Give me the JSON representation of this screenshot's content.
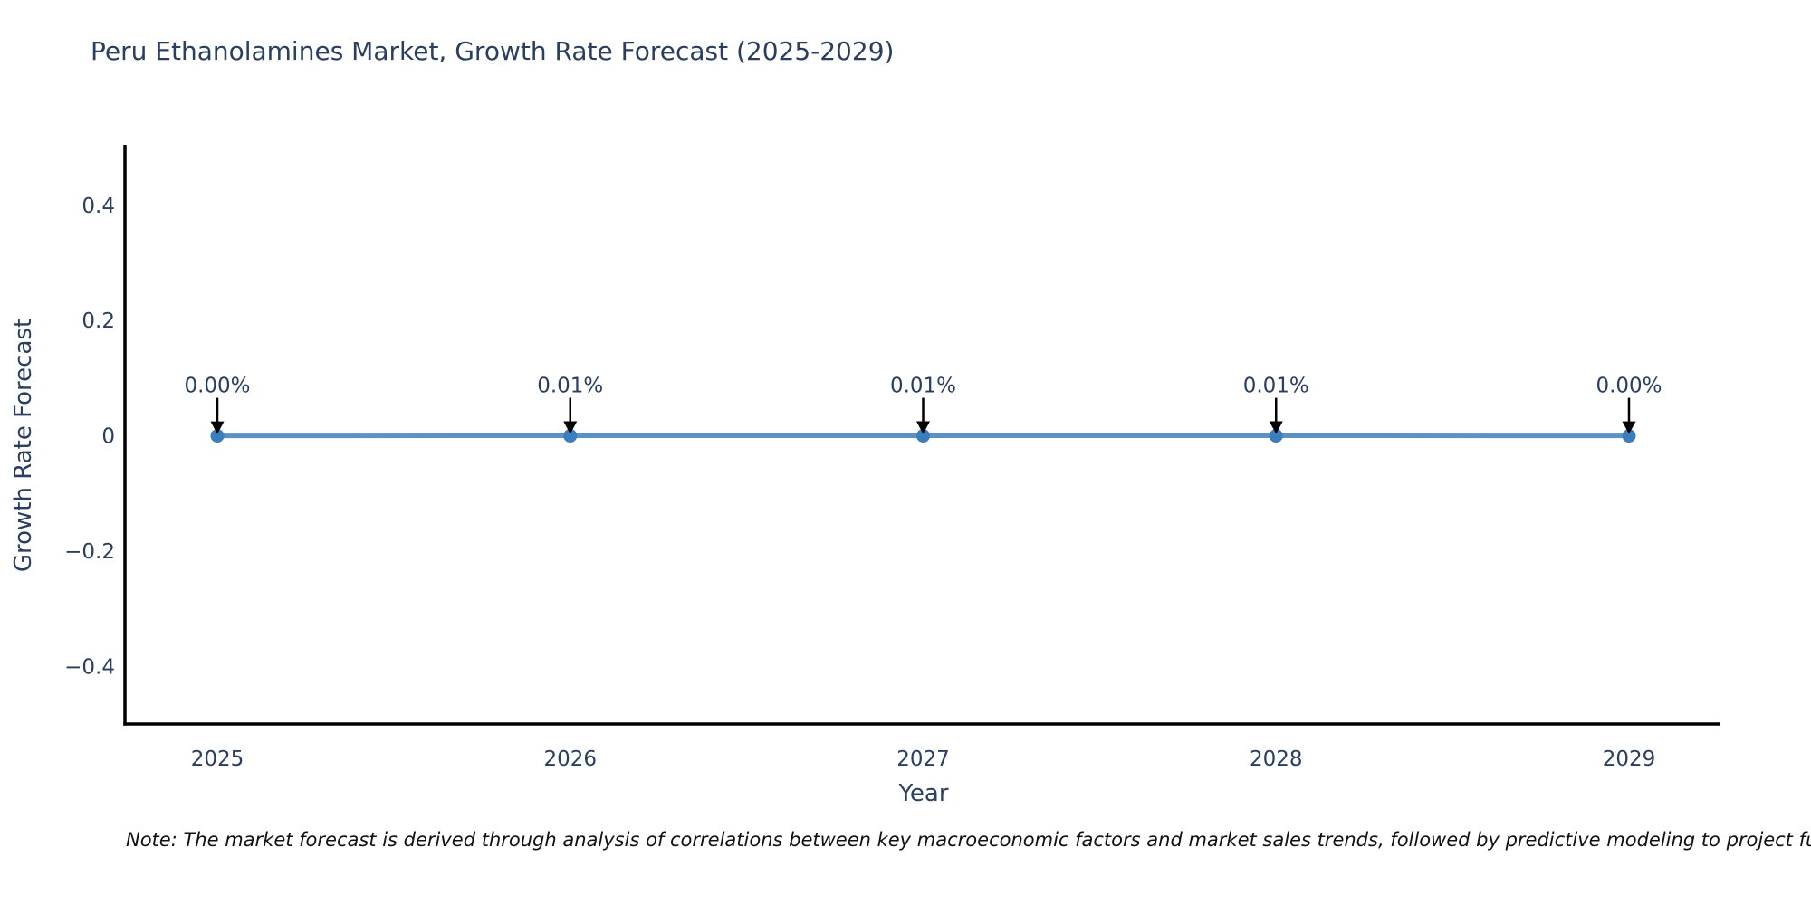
{
  "title": "Peru Ethanolamines Market, Growth Rate Forecast (2025-2029)",
  "note": "Note: The market forecast is derived through analysis of correlations between key macroeconomic factors and market sales trends, followed by predictive modeling to project future sales",
  "chart_data": {
    "type": "line",
    "title": "Peru Ethanolamines Market, Growth Rate Forecast (2025-2029)",
    "xlabel": "Year",
    "ylabel": "Growth Rate Forecast",
    "x": [
      2025,
      2026,
      2027,
      2028,
      2029
    ],
    "x_labels": [
      "2025",
      "2026",
      "2027",
      "2028",
      "2029"
    ],
    "y": [
      0.0,
      0.0001,
      0.0001,
      0.0001,
      0.0
    ],
    "point_labels": [
      "0.00%",
      "0.01%",
      "0.01%",
      "0.01%",
      "0.00%"
    ],
    "yticks": [
      -0.4,
      -0.2,
      0,
      0.2,
      0.4
    ],
    "ytick_labels": [
      "−0.4",
      "−0.2",
      "0",
      "0.2",
      "0.4"
    ],
    "ylim": [
      -0.5,
      0.505
    ],
    "grid": false,
    "legend": "none",
    "annotation_style": "down-arrow",
    "colors": {
      "line": "#5b92c4",
      "marker": "#3a7ebd",
      "axis": "#000000",
      "text": "#2a3f5f",
      "arrow": "#000000",
      "note_text": "#111111"
    }
  }
}
